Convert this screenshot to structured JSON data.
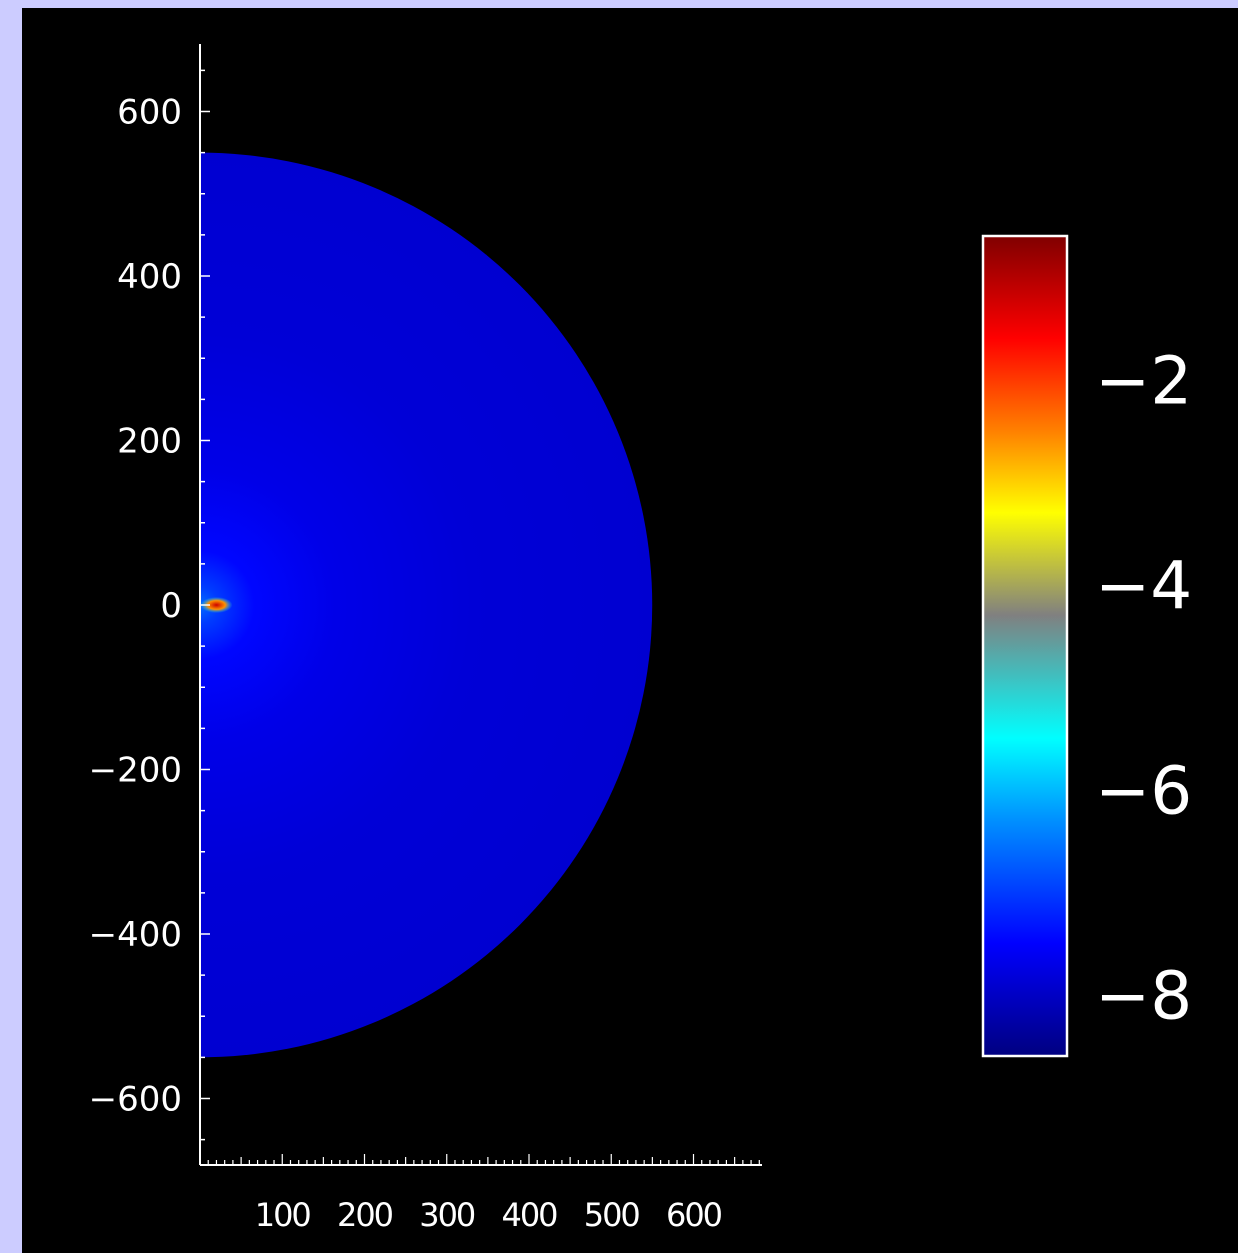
{
  "chart_data": {
    "type": "heatmap",
    "title": "",
    "xlabel": "",
    "ylabel": "",
    "xlim": [
      0,
      680
    ],
    "ylim": [
      -690,
      690
    ],
    "x_ticks": [
      100,
      200,
      300,
      400,
      500,
      600
    ],
    "x_tick_labels": [
      "100",
      "200",
      "300",
      "400",
      "500",
      "600"
    ],
    "y_ticks": [
      600,
      400,
      200,
      0,
      -200,
      -400,
      -600
    ],
    "y_tick_labels": [
      "600",
      "400",
      "200",
      "0",
      "−200",
      "−400",
      "−600"
    ],
    "field": {
      "shape": "half-disk",
      "center": [
        0,
        0
      ],
      "radius": 550,
      "background_log_value": -7.9,
      "peak_log_value": -1.2,
      "hot_spot": [
        20,
        0
      ]
    },
    "colorbar": {
      "range": [
        -8.6,
        -0.6
      ],
      "ticks": [
        -2,
        -4,
        -6,
        -8
      ],
      "tick_labels": [
        "−2",
        "−4",
        "−6",
        "−8"
      ],
      "colormap": [
        [
          -8.6,
          "#000080"
        ],
        [
          -7.5,
          "#0000ff"
        ],
        [
          -6.3,
          "#0090ff"
        ],
        [
          -5.5,
          "#00ffff"
        ],
        [
          -4.3,
          "#808080"
        ],
        [
          -3.3,
          "#ffff00"
        ],
        [
          -2.5,
          "#ff8000"
        ],
        [
          -1.6,
          "#ff0000"
        ],
        [
          -0.6,
          "#800000"
        ]
      ]
    }
  }
}
